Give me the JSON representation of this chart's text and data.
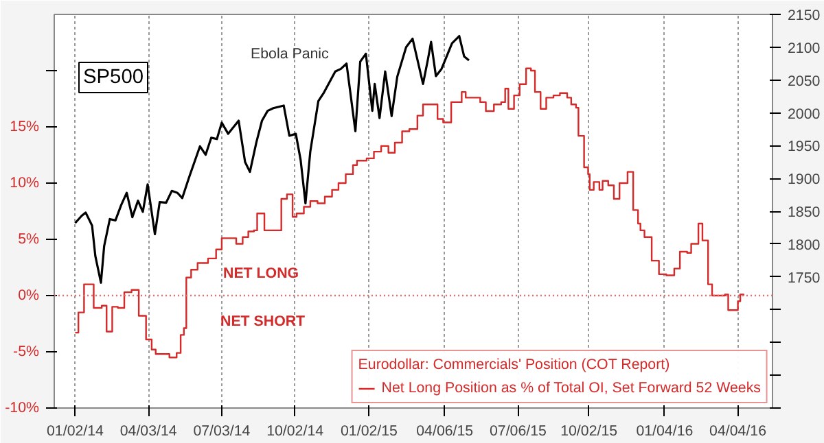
{
  "chart_data": {
    "type": "step",
    "xlim": [
      "2013-12-07",
      "2016-05-17"
    ],
    "xticks": [
      {
        "value": "2014-01-02",
        "label": "01/02/14"
      },
      {
        "value": "2014-04-03",
        "label": "04/03/14"
      },
      {
        "value": "2014-07-03",
        "label": "07/03/14"
      },
      {
        "value": "2014-10-02",
        "label": "10/02/14"
      },
      {
        "value": "2015-01-02",
        "label": "01/02/15"
      },
      {
        "value": "2015-04-06",
        "label": "04/06/15"
      },
      {
        "value": "2015-07-06",
        "label": "07/06/15"
      },
      {
        "value": "2015-10-02",
        "label": "10/02/15"
      },
      {
        "value": "2016-01-04",
        "label": "01/04/16"
      },
      {
        "value": "2016-04-04",
        "label": "04/04/16"
      }
    ],
    "ylim": [
      -10,
      25
    ],
    "yticks": [
      {
        "value": -10,
        "label": "-10%"
      },
      {
        "value": -5,
        "label": "-5%"
      },
      {
        "value": 0,
        "label": "0%"
      },
      {
        "value": 5,
        "label": "5%"
      },
      {
        "value": 10,
        "label": "10%"
      },
      {
        "value": 15,
        "label": "15%"
      },
      {
        "value": 20,
        "label": null
      }
    ],
    "y2lim": [
      1550,
      2150
    ],
    "y2ticks": [
      {
        "value": 1550,
        "label": null
      },
      {
        "value": 1600,
        "label": null
      },
      {
        "value": 1650,
        "label": null
      },
      {
        "value": 1700,
        "label": null
      },
      1750,
      1800,
      1850,
      1900,
      1950,
      2000,
      2050,
      2100,
      2150
    ],
    "grid": "x",
    "legend": "bottom right",
    "line_style": "solid",
    "ref_lines": [
      {
        "axis": "y",
        "value": 0,
        "color": "#e07070",
        "line_style": "dotted"
      }
    ],
    "legend_title": "Eurodollar: Commercials' Position (COT Report)",
    "annotations": [
      "Ebola Panic",
      "NET LONG",
      "NET SHORT"
    ],
    "series": [
      {
        "name": "Net Long Position as % of Total OI, Set Forward 52 Weeks",
        "color": "#d42a2a",
        "x": [
          "2014-01-02",
          "2014-01-06",
          "2014-01-13",
          "2014-01-25",
          "2014-02-04",
          "2014-02-10",
          "2014-02-17",
          "2014-02-24",
          "2014-03-04",
          "2014-03-13",
          "2014-03-22",
          "2014-03-31",
          "2014-04-07",
          "2014-04-12",
          "2014-04-29",
          "2014-05-08",
          "2014-05-13",
          "2014-05-17",
          "2014-05-20",
          "2014-05-26",
          "2014-06-03",
          "2014-06-16",
          "2014-06-26",
          "2014-07-03",
          "2014-07-21",
          "2014-07-29",
          "2014-08-05",
          "2014-08-12",
          "2014-08-16",
          "2014-08-25",
          "2014-09-15",
          "2014-09-22",
          "2014-09-29",
          "2014-10-04",
          "2014-10-13",
          "2014-10-21",
          "2014-10-30",
          "2014-11-08",
          "2014-11-17",
          "2014-11-25",
          "2014-12-04",
          "2014-12-13",
          "2014-12-18",
          "2014-12-30",
          "2015-01-08",
          "2015-01-17",
          "2015-01-26",
          "2015-02-03",
          "2015-02-12",
          "2015-02-21",
          "2015-03-03",
          "2015-03-10",
          "2015-03-28",
          "2015-04-04",
          "2015-04-14",
          "2015-04-27",
          "2015-05-02",
          "2015-05-20",
          "2015-05-27",
          "2015-06-06",
          "2015-06-15",
          "2015-06-20",
          "2015-06-24",
          "2015-07-01",
          "2015-07-08",
          "2015-07-16",
          "2015-07-22",
          "2015-07-27",
          "2015-08-03",
          "2015-08-10",
          "2015-08-19",
          "2015-08-27",
          "2015-09-05",
          "2015-09-10",
          "2015-09-16",
          "2015-09-19",
          "2015-09-26",
          "2015-10-01",
          "2015-10-03",
          "2015-10-08",
          "2015-10-15",
          "2015-10-19",
          "2015-10-26",
          "2015-11-02",
          "2015-11-09",
          "2015-11-19",
          "2015-11-26",
          "2015-12-02",
          "2015-12-05",
          "2015-12-10",
          "2015-12-19",
          "2015-12-28",
          "2016-01-06",
          "2016-01-16",
          "2016-01-23",
          "2016-02-01",
          "2016-02-06",
          "2016-02-15",
          "2016-02-20",
          "2016-02-27",
          "2016-03-03",
          "2016-03-19",
          "2016-03-23",
          "2016-03-30",
          "2016-04-04",
          "2016-04-07",
          "2016-04-11"
        ],
        "values": [
          -3.3,
          -1.5,
          1.0,
          -1.1,
          -0.9,
          -3.2,
          -1.0,
          -1.1,
          0.3,
          0.5,
          -1.8,
          -3.9,
          -4.8,
          -5.2,
          -5.5,
          -5.1,
          -3.5,
          -2.9,
          1.6,
          2.3,
          2.9,
          3.3,
          4.1,
          5.1,
          4.6,
          5.2,
          5.7,
          5.8,
          7.3,
          5.8,
          8.6,
          9.0,
          7.0,
          7.3,
          7.9,
          8.4,
          8.2,
          8.8,
          9.4,
          10.0,
          10.8,
          11.6,
          12.0,
          12.2,
          12.8,
          13.3,
          12.7,
          13.6,
          14.6,
          14.8,
          16.0,
          17.0,
          15.7,
          15.4,
          17.2,
          18.1,
          17.6,
          17.2,
          16.4,
          17.0,
          17.2,
          18.4,
          16.6,
          17.8,
          18.8,
          20.2,
          20.0,
          18.1,
          16.6,
          17.6,
          17.8,
          18.0,
          17.6,
          17.0,
          16.7,
          14.2,
          11.4,
          10.8,
          9.4,
          10.1,
          9.4,
          10.2,
          9.8,
          8.6,
          10.0,
          11.0,
          7.6,
          6.4,
          5.8,
          5.2,
          3.1,
          1.9,
          1.8,
          2.4,
          3.9,
          3.8,
          4.6,
          6.4,
          4.9,
          1.0,
          0.0,
          0.1,
          -1.3,
          -1.3,
          -0.5,
          0.1,
          0.0
        ]
      },
      {
        "name": "SP500",
        "color": "#000000",
        "type": "line",
        "axis": "y2",
        "x": [
          "2014-01-02",
          "2014-01-10",
          "2014-01-15",
          "2014-01-23",
          "2014-01-27",
          "2014-02-03",
          "2014-02-07",
          "2014-02-14",
          "2014-02-21",
          "2014-02-28",
          "2014-03-07",
          "2014-03-14",
          "2014-03-21",
          "2014-03-27",
          "2014-04-02",
          "2014-04-11",
          "2014-04-17",
          "2014-04-25",
          "2014-05-02",
          "2014-05-09",
          "2014-05-15",
          "2014-05-23",
          "2014-06-06",
          "2014-06-13",
          "2014-06-20",
          "2014-06-27",
          "2014-07-03",
          "2014-07-11",
          "2014-07-24",
          "2014-08-01",
          "2014-08-07",
          "2014-08-15",
          "2014-08-22",
          "2014-08-29",
          "2014-09-05",
          "2014-09-18",
          "2014-09-25",
          "2014-10-03",
          "2014-10-09",
          "2014-10-15",
          "2014-10-21",
          "2014-10-31",
          "2014-11-07",
          "2014-11-21",
          "2014-11-28",
          "2014-12-05",
          "2014-12-16",
          "2014-12-22",
          "2014-12-29",
          "2015-01-06",
          "2015-01-09",
          "2015-01-15",
          "2015-01-22",
          "2015-01-30",
          "2015-02-06",
          "2015-02-17",
          "2015-02-25",
          "2015-03-10",
          "2015-03-16",
          "2015-03-20",
          "2015-03-26",
          "2015-04-02",
          "2015-04-15",
          "2015-04-24",
          "2015-04-30",
          "2015-05-06"
        ],
        "values": [
          1832,
          1843,
          1848,
          1828,
          1782,
          1741,
          1797,
          1838,
          1836,
          1859,
          1878,
          1841,
          1866,
          1849,
          1891,
          1815,
          1864,
          1863,
          1881,
          1878,
          1870,
          1900,
          1949,
          1936,
          1962,
          1960,
          1985,
          1968,
          1988,
          1925,
          1910,
          1955,
          1988,
          2003,
          2007,
          2011,
          1965,
          1968,
          1928,
          1862,
          1941,
          2018,
          2031,
          2063,
          2067,
          2075,
          1972,
          2078,
          2090,
          2003,
          2044,
          1992,
          2063,
          1995,
          2055,
          2100,
          2113,
          2044,
          2081,
          2108,
          2056,
          2067,
          2106,
          2117,
          2086,
          2080
        ]
      }
    ]
  }
}
